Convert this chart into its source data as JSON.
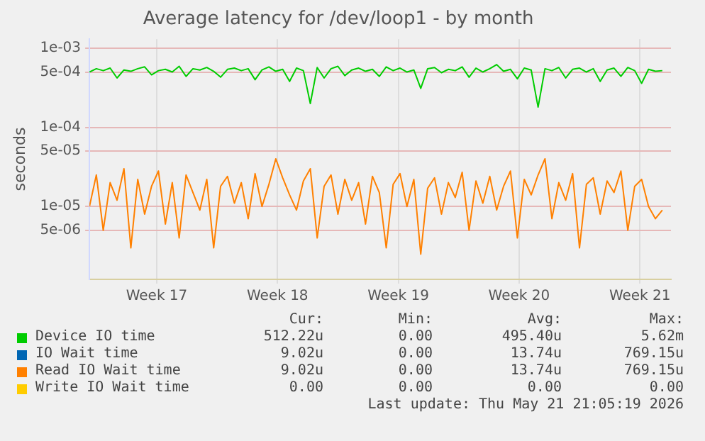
{
  "chart_data": {
    "type": "line",
    "title": "Average latency for /dev/loop1 - by month",
    "ylabel": "seconds",
    "log": "y",
    "grid": true,
    "legend": "bottom",
    "marker": "none",
    "line_style": "solid",
    "xlim": [
      "2026-04-18T14:24",
      "2026-05-22T07:12"
    ],
    "xticks": [
      {
        "value": "2026-04-22T12:00",
        "label": "Week 17"
      },
      {
        "value": "2026-04-29T12:00",
        "label": "Week 18"
      },
      {
        "value": "2026-05-06T12:00",
        "label": "Week 19"
      },
      {
        "value": "2026-05-13T12:00",
        "label": "Week 20"
      },
      {
        "value": "2026-05-20T12:00",
        "label": "Week 21"
      }
    ],
    "ylim": [
      1.2e-06,
      0.0013
    ],
    "yticks": [
      {
        "value": 0.001,
        "label": "1e-03"
      },
      {
        "value": 0.0005,
        "label": "5e-04"
      },
      {
        "value": 0.0001,
        "label": "1e-04"
      },
      {
        "value": 5e-05,
        "label": "5e-05"
      },
      {
        "value": 1e-05,
        "label": "1e-05"
      },
      {
        "value": 5e-06,
        "label": "5e-06"
      }
    ],
    "x": [
      "2026-04-18T14:24",
      "2026-04-19T00:00",
      "2026-04-19T09:36",
      "2026-04-19T19:12",
      "2026-04-20T04:48",
      "2026-04-20T14:24",
      "2026-04-21T00:00",
      "2026-04-21T09:36",
      "2026-04-21T19:12",
      "2026-04-22T04:48",
      "2026-04-22T14:24",
      "2026-04-23T00:00",
      "2026-04-23T09:36",
      "2026-04-23T19:12",
      "2026-04-24T04:48",
      "2026-04-24T14:24",
      "2026-04-25T00:00",
      "2026-04-25T09:36",
      "2026-04-25T19:12",
      "2026-04-26T04:48",
      "2026-04-26T14:24",
      "2026-04-27T00:00",
      "2026-04-27T09:36",
      "2026-04-27T19:12",
      "2026-04-28T04:48",
      "2026-04-28T14:24",
      "2026-04-29T00:00",
      "2026-04-29T09:36",
      "2026-04-29T19:12",
      "2026-04-30T04:48",
      "2026-04-30T14:24",
      "2026-05-01T00:00",
      "2026-05-01T09:36",
      "2026-05-01T19:12",
      "2026-05-02T04:48",
      "2026-05-02T14:24",
      "2026-05-03T00:00",
      "2026-05-03T09:36",
      "2026-05-03T19:12",
      "2026-05-04T04:48",
      "2026-05-04T14:24",
      "2026-05-05T00:00",
      "2026-05-05T09:36",
      "2026-05-05T19:12",
      "2026-05-06T04:48",
      "2026-05-06T14:24",
      "2026-05-07T00:00",
      "2026-05-07T09:36",
      "2026-05-07T19:12",
      "2026-05-08T04:48",
      "2026-05-08T14:24",
      "2026-05-09T00:00",
      "2026-05-09T09:36",
      "2026-05-09T19:12",
      "2026-05-10T04:48",
      "2026-05-10T14:24",
      "2026-05-11T00:00",
      "2026-05-11T09:36",
      "2026-05-11T19:12",
      "2026-05-12T04:48",
      "2026-05-12T14:24",
      "2026-05-13T00:00",
      "2026-05-13T09:36",
      "2026-05-13T19:12",
      "2026-05-14T04:48",
      "2026-05-14T14:24",
      "2026-05-15T00:00",
      "2026-05-15T09:36",
      "2026-05-15T19:12",
      "2026-05-16T04:48",
      "2026-05-16T14:24",
      "2026-05-17T00:00",
      "2026-05-17T09:36",
      "2026-05-17T19:12",
      "2026-05-18T04:48",
      "2026-05-18T14:24",
      "2026-05-19T00:00",
      "2026-05-19T09:36",
      "2026-05-19T19:12",
      "2026-05-20T04:48",
      "2026-05-20T14:24",
      "2026-05-21T00:00",
      "2026-05-21T09:36",
      "2026-05-21T19:12"
    ],
    "series": [
      {
        "name": "Device IO time",
        "color": "#00cc00",
        "values": [
          0.0005,
          0.00055,
          0.00052,
          0.00056,
          0.00042,
          0.00053,
          0.00051,
          0.00055,
          0.00058,
          0.00046,
          0.00052,
          0.00054,
          0.0005,
          0.00059,
          0.00044,
          0.00055,
          0.00053,
          0.00057,
          0.00051,
          0.00043,
          0.00054,
          0.00056,
          0.00052,
          0.00055,
          0.0004,
          0.00053,
          0.00058,
          0.00051,
          0.00054,
          0.00038,
          0.00056,
          0.00052,
          0.0002,
          0.00057,
          0.00042,
          0.00055,
          0.00059,
          0.00045,
          0.00053,
          0.00056,
          0.00051,
          0.00054,
          0.00044,
          0.00058,
          0.00052,
          0.00056,
          0.0005,
          0.00053,
          0.00031,
          0.00055,
          0.00057,
          0.00049,
          0.00054,
          0.00052,
          0.00058,
          0.00043,
          0.00056,
          0.0005,
          0.00055,
          0.00062,
          0.00051,
          0.00054,
          0.00041,
          0.00056,
          0.00053,
          0.00018,
          0.00055,
          0.00052,
          0.00057,
          0.00042,
          0.00054,
          0.00056,
          0.0005,
          0.00055,
          0.00038,
          0.00053,
          0.00056,
          0.00044,
          0.00057,
          0.00052,
          0.00036,
          0.00054,
          0.00051,
          0.00052
        ]
      },
      {
        "name": "IO Wait time",
        "color": "#0066b3",
        "values": [
          null,
          null,
          null,
          null,
          null,
          null,
          null,
          null,
          null,
          null,
          null,
          null,
          null,
          null,
          null,
          null,
          null,
          null,
          null,
          null,
          null,
          null,
          null,
          null,
          null,
          null,
          null,
          null,
          null,
          null,
          null,
          null,
          null,
          null,
          null,
          null,
          null,
          null,
          null,
          null,
          null,
          null,
          null,
          null,
          null,
          null,
          null,
          null,
          null,
          null,
          null,
          null,
          null,
          null,
          null,
          null,
          null,
          null,
          null,
          null,
          null,
          null,
          null,
          null,
          null,
          null,
          null,
          null,
          null,
          null,
          null,
          null,
          null,
          null,
          null,
          null,
          null,
          null,
          null,
          null,
          null,
          null,
          null,
          null
        ]
      },
      {
        "name": "Read IO Wait time",
        "color": "#ff8000",
        "values": [
          1e-05,
          2.5e-05,
          5e-06,
          2e-05,
          1.2e-05,
          3e-05,
          3e-06,
          2.2e-05,
          8e-06,
          1.8e-05,
          2.8e-05,
          6e-06,
          2e-05,
          4e-06,
          2.5e-05,
          1.5e-05,
          9e-06,
          2.2e-05,
          3e-06,
          1.8e-05,
          2.4e-05,
          1.1e-05,
          2e-05,
          7e-06,
          2.6e-05,
          1e-05,
          1.9e-05,
          4e-05,
          2.3e-05,
          1.4e-05,
          9e-06,
          2.1e-05,
          3e-05,
          4e-06,
          1.8e-05,
          2.5e-05,
          8e-06,
          2.2e-05,
          1.2e-05,
          2e-05,
          6e-06,
          2.4e-05,
          1.5e-05,
          3e-06,
          1.9e-05,
          2.6e-05,
          1e-05,
          2.2e-05,
          2.5e-06,
          1.7e-05,
          2.3e-05,
          8e-06,
          2e-05,
          1.3e-05,
          2.7e-05,
          5e-06,
          2.1e-05,
          1.1e-05,
          2.4e-05,
          9e-06,
          1.8e-05,
          2.8e-05,
          4e-06,
          2.2e-05,
          1.4e-05,
          2.5e-05,
          4e-05,
          7e-06,
          2e-05,
          1.2e-05,
          2.6e-05,
          3e-06,
          1.9e-05,
          2.3e-05,
          8e-06,
          2.1e-05,
          1.5e-05,
          2.8e-05,
          5e-06,
          1.8e-05,
          2.2e-05,
          1e-05,
          7e-06,
          9e-06
        ]
      },
      {
        "name": "Write IO Wait time",
        "color": "#ffcc00",
        "values": [
          null,
          null,
          null,
          null,
          null,
          null,
          null,
          null,
          null,
          null,
          null,
          null,
          null,
          null,
          null,
          null,
          null,
          null,
          null,
          null,
          null,
          null,
          null,
          null,
          null,
          null,
          null,
          null,
          null,
          null,
          null,
          null,
          null,
          null,
          null,
          null,
          null,
          null,
          null,
          null,
          null,
          null,
          null,
          null,
          null,
          null,
          null,
          null,
          null,
          null,
          null,
          null,
          null,
          null,
          null,
          null,
          null,
          null,
          null,
          null,
          null,
          null,
          null,
          null,
          null,
          null,
          null,
          null,
          null,
          null,
          null,
          null,
          null,
          null,
          null,
          null,
          null,
          null,
          null,
          null,
          null,
          null,
          null,
          null
        ]
      }
    ],
    "annotations": [
      "Cur:",
      "Min:",
      "Avg:",
      "Max:",
      "512.22u",
      "0.00",
      "495.40u",
      "5.62m",
      "9.02u",
      "0.00",
      "13.74u",
      "769.15u",
      "9.02u",
      "0.00",
      "13.74u",
      "769.15u",
      "0.00",
      "0.00",
      "0.00",
      "0.00",
      "Last update: Thu May 21 21:05:19 2026"
    ]
  }
}
